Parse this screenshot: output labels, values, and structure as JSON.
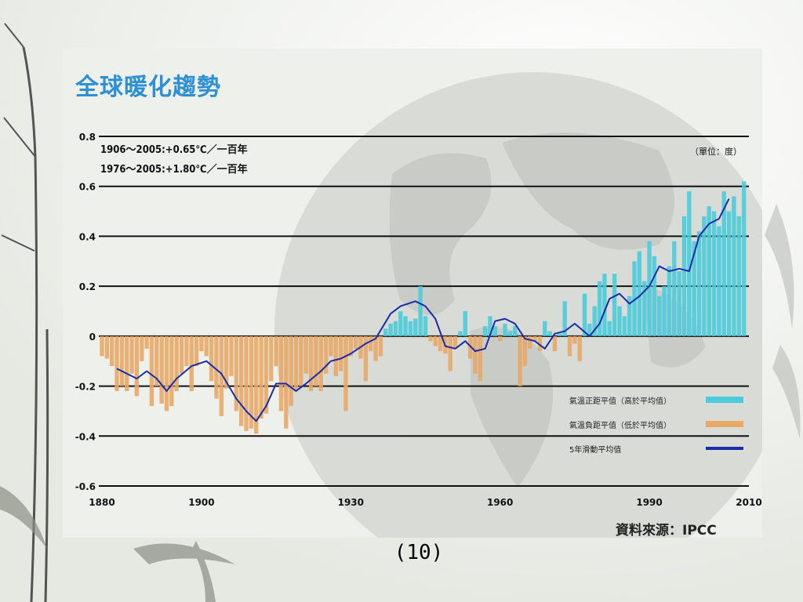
{
  "slide": {
    "page_number": "(10)"
  },
  "colors": {
    "positive_bar": "#4ccbdc",
    "negative_bar": "#e8a868",
    "avg_line": "#1a2ca8",
    "title": "#2d8fd4",
    "grid": "#111111"
  },
  "chart_data": {
    "type": "bar",
    "title": "全球暖化趨勢",
    "annotations": [
      "1906～2005:+0.65℃／一百年",
      "1976～2005:+1.80℃／一百年"
    ],
    "unit": "（單位：度）",
    "source": "資料來源：IPCC",
    "ylim": [
      -0.6,
      0.8
    ],
    "xlim": [
      1880,
      2010
    ],
    "y_ticks": [
      "0.8",
      "0.6",
      "0.4",
      "0.2",
      "0",
      "-0.2",
      "-0.4",
      "-0.6"
    ],
    "x_ticks": [
      "1880",
      "1900",
      "1930",
      "1960",
      "1990",
      "2010"
    ],
    "legend": [
      {
        "name": "氣溫正距平值（高於平均值）",
        "kind": "positive_bar"
      },
      {
        "name": "氣溫負距平值（低於平均值）",
        "kind": "negative_bar"
      },
      {
        "name": "5年滑動平均值",
        "kind": "avg_line"
      }
    ],
    "annual_anomaly": {
      "years": [
        1880,
        1881,
        1882,
        1883,
        1884,
        1885,
        1886,
        1887,
        1888,
        1889,
        1890,
        1891,
        1892,
        1893,
        1894,
        1895,
        1896,
        1897,
        1898,
        1899,
        1900,
        1901,
        1902,
        1903,
        1904,
        1905,
        1906,
        1907,
        1908,
        1909,
        1910,
        1911,
        1912,
        1913,
        1914,
        1915,
        1916,
        1917,
        1918,
        1919,
        1920,
        1921,
        1922,
        1923,
        1924,
        1925,
        1926,
        1927,
        1928,
        1929,
        1930,
        1931,
        1932,
        1933,
        1934,
        1935,
        1936,
        1937,
        1938,
        1939,
        1940,
        1941,
        1942,
        1943,
        1944,
        1945,
        1946,
        1947,
        1948,
        1949,
        1950,
        1951,
        1952,
        1953,
        1954,
        1955,
        1956,
        1957,
        1958,
        1959,
        1960,
        1961,
        1962,
        1963,
        1964,
        1965,
        1966,
        1967,
        1968,
        1969,
        1970,
        1971,
        1972,
        1973,
        1974,
        1975,
        1976,
        1977,
        1978,
        1979,
        1980,
        1981,
        1982,
        1983,
        1984,
        1985,
        1986,
        1987,
        1988,
        1989,
        1990,
        1991,
        1992,
        1993,
        1994,
        1995,
        1996,
        1997,
        1998,
        1999,
        2000,
        2001,
        2002,
        2003,
        2004,
        2005,
        2006,
        2007,
        2008,
        2009
      ],
      "values": [
        -0.08,
        -0.09,
        -0.12,
        -0.22,
        -0.2,
        -0.22,
        -0.15,
        -0.24,
        -0.1,
        -0.05,
        -0.28,
        -0.2,
        -0.27,
        -0.3,
        -0.28,
        -0.22,
        -0.15,
        -0.12,
        -0.22,
        -0.12,
        -0.06,
        -0.08,
        -0.18,
        -0.25,
        -0.32,
        -0.21,
        -0.16,
        -0.3,
        -0.36,
        -0.38,
        -0.37,
        -0.39,
        -0.33,
        -0.31,
        -0.18,
        -0.12,
        -0.3,
        -0.37,
        -0.28,
        -0.22,
        -0.2,
        -0.15,
        -0.22,
        -0.2,
        -0.22,
        -0.15,
        -0.08,
        -0.16,
        -0.14,
        -0.3,
        -0.08,
        -0.05,
        -0.09,
        -0.18,
        -0.06,
        -0.1,
        -0.08,
        0.03,
        0.05,
        0.06,
        0.1,
        0.08,
        0.06,
        0.07,
        0.2,
        0.08,
        -0.02,
        -0.04,
        -0.06,
        -0.07,
        -0.14,
        -0.05,
        0.02,
        0.1,
        -0.09,
        -0.15,
        -0.18,
        0.04,
        0.08,
        0.04,
        -0.02,
        0.05,
        0.02,
        0.04,
        -0.2,
        -0.12,
        -0.05,
        -0.02,
        -0.06,
        0.06,
        0.02,
        -0.06,
        0.01,
        0.14,
        -0.08,
        -0.03,
        -0.1,
        0.17,
        0.05,
        0.12,
        0.22,
        0.25,
        0.06,
        0.25,
        0.12,
        0.08,
        0.16,
        0.3,
        0.34,
        0.22,
        0.38,
        0.32,
        0.16,
        0.2,
        0.28,
        0.38,
        0.26,
        0.48,
        0.58,
        0.38,
        0.42,
        0.48,
        0.52,
        0.5,
        0.44,
        0.58,
        0.5,
        0.56,
        0.48,
        0.62
      ]
    },
    "moving_average": {
      "years": [
        1883,
        1885,
        1887,
        1889,
        1891,
        1893,
        1895,
        1898,
        1901,
        1904,
        1907,
        1909,
        1911,
        1913,
        1915,
        1917,
        1919,
        1921,
        1924,
        1926,
        1928,
        1930,
        1933,
        1935,
        1938,
        1940,
        1943,
        1945,
        1947,
        1949,
        1951,
        1953,
        1955,
        1957,
        1959,
        1961,
        1963,
        1965,
        1967,
        1969,
        1971,
        1973,
        1975,
        1978,
        1980,
        1982,
        1984,
        1986,
        1988,
        1990,
        1992,
        1994,
        1996,
        1998,
        2000,
        2002,
        2004,
        2006
      ],
      "values": [
        -0.13,
        -0.15,
        -0.17,
        -0.14,
        -0.17,
        -0.22,
        -0.17,
        -0.12,
        -0.1,
        -0.15,
        -0.25,
        -0.3,
        -0.34,
        -0.28,
        -0.19,
        -0.19,
        -0.22,
        -0.19,
        -0.14,
        -0.1,
        -0.09,
        -0.07,
        -0.03,
        -0.01,
        0.09,
        0.12,
        0.14,
        0.12,
        0.07,
        -0.04,
        -0.05,
        -0.02,
        -0.06,
        -0.05,
        0.06,
        0.07,
        0.05,
        -0.01,
        -0.02,
        -0.05,
        0.01,
        0.02,
        0.05,
        0.0,
        0.05,
        0.15,
        0.17,
        0.13,
        0.16,
        0.2,
        0.28,
        0.26,
        0.27,
        0.26,
        0.4,
        0.45,
        0.47,
        0.55
      ]
    }
  }
}
